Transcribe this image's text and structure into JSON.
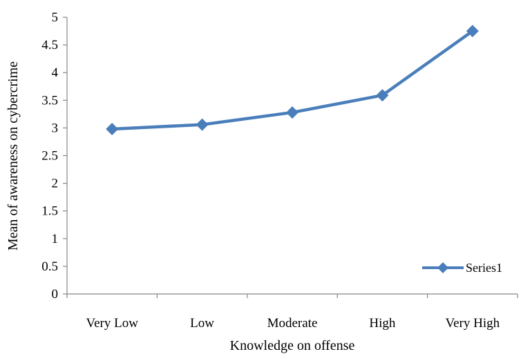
{
  "chart_data": {
    "type": "line",
    "categories": [
      "Very Low",
      "Low",
      "Moderate",
      "High",
      "Very High"
    ],
    "series": [
      {
        "name": "Series1",
        "values": [
          2.98,
          3.06,
          3.28,
          3.59,
          4.75
        ],
        "color": "#4a7ebb",
        "marker": "diamond"
      }
    ],
    "xlabel": "Knowledge on offense",
    "ylabel": "Mean of awareness on cybercrime",
    "ylim": [
      0,
      5
    ],
    "yticks": [
      "0",
      "0.5",
      "1",
      "1.5",
      "2",
      "2.5",
      "3",
      "3.5",
      "4",
      "4.5",
      "5"
    ],
    "grid": false,
    "legend": {
      "position": "bottom-right",
      "entries": [
        "Series1"
      ]
    }
  }
}
